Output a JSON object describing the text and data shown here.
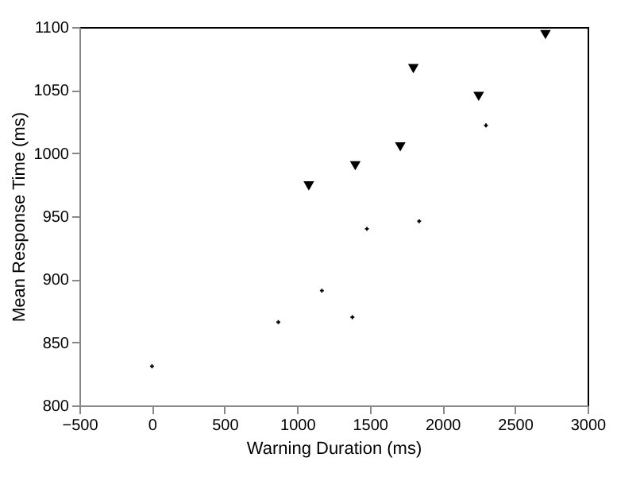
{
  "chart_data": {
    "type": "scatter",
    "xlabel": "Warning Duration (ms)",
    "ylabel": "Mean Response Time (ms)",
    "series": [
      {
        "color": "#000000",
        "marker": "cross",
        "x": [
          0,
          870,
          1170,
          1380,
          1480,
          1840,
          2300
        ],
        "values": [
          831,
          866,
          891,
          870,
          940,
          946,
          1022
        ]
      },
      {
        "color": "#000000",
        "marker": "triangle",
        "x": [
          1080,
          1400,
          1710,
          1800,
          2250,
          2710
        ],
        "values": [
          974,
          990,
          1005,
          1067,
          1045,
          1094
        ]
      }
    ],
    "xlim": [
      -500,
      3000
    ],
    "xticks": [
      -500,
      0,
      500,
      1000,
      1500,
      2000,
      2500,
      3000
    ],
    "ylim": [
      800,
      1100
    ],
    "yticks": [
      800,
      850,
      900,
      950,
      1000,
      1050,
      1100
    ],
    "grid": false
  }
}
